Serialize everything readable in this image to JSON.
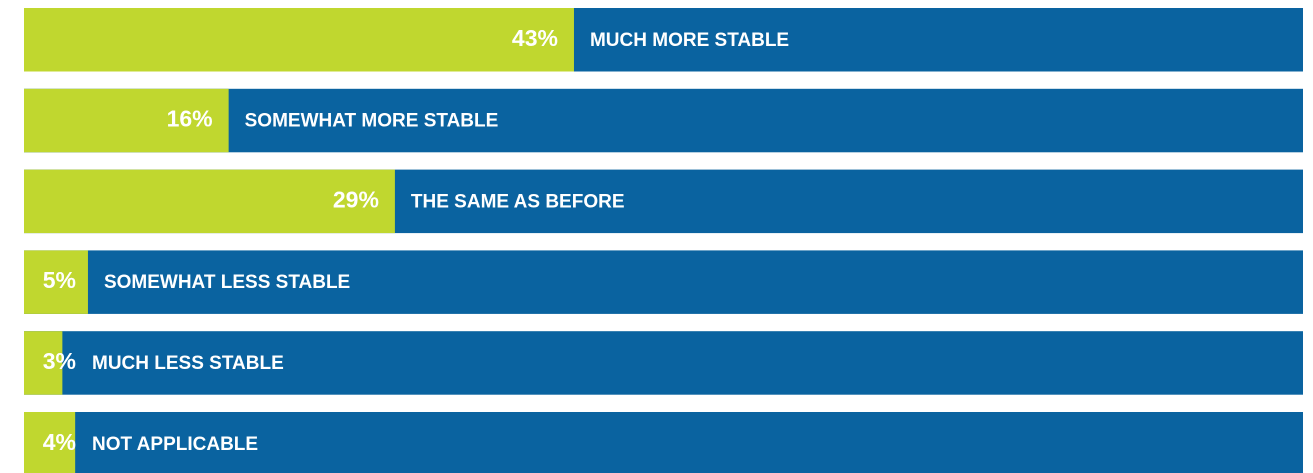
{
  "chart_data": {
    "type": "hbar",
    "categories": [
      "MUCH MORE STABLE",
      "SOMEWHAT MORE STABLE",
      "THE SAME AS BEFORE",
      "SOMEWHAT LESS STABLE",
      "MUCH LESS STABLE",
      "NOT APPLICABLE"
    ],
    "values": [
      43,
      16,
      29,
      5,
      3,
      4
    ],
    "value_labels": [
      "43%",
      "16%",
      "29%",
      "5%",
      "3%",
      "4%"
    ],
    "color": "#c0d72f",
    "track_color": "#0a63a0",
    "xlim": [
      0,
      100
    ]
  }
}
